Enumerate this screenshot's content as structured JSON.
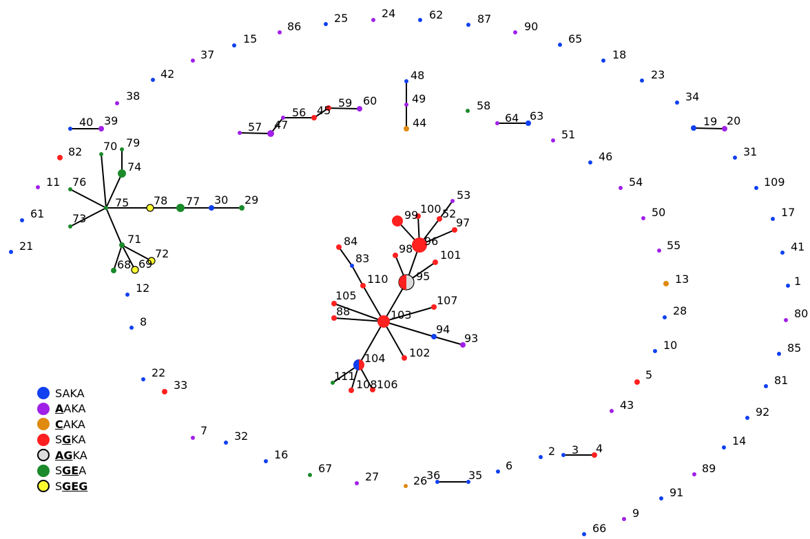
{
  "colors": {
    "blue": "#1040f0",
    "purple": "#a020e8",
    "orange": "#e08a10",
    "red": "#ff2020",
    "gray": "#dcdcdc",
    "green": "#1a8a2a",
    "yellow": "#ffff30",
    "edge": "#000000"
  },
  "legend": [
    {
      "color": "blue",
      "parts": [
        {
          "t": "SAKA",
          "u": false
        }
      ]
    },
    {
      "color": "purple",
      "parts": [
        {
          "t": "A",
          "u": true
        },
        {
          "t": "AKA",
          "u": false
        }
      ]
    },
    {
      "color": "orange",
      "parts": [
        {
          "t": "C",
          "u": true
        },
        {
          "t": "AKA",
          "u": false
        }
      ]
    },
    {
      "color": "red",
      "parts": [
        {
          "t": "S",
          "u": false
        },
        {
          "t": "G",
          "u": true
        },
        {
          "t": "KA",
          "u": false
        }
      ]
    },
    {
      "color": "gray",
      "parts": [
        {
          "t": "AG",
          "u": true
        },
        {
          "t": "KA",
          "u": false
        }
      ]
    },
    {
      "color": "green",
      "parts": [
        {
          "t": "S",
          "u": false
        },
        {
          "t": "GE",
          "u": true
        },
        {
          "t": "A",
          "u": false
        }
      ]
    },
    {
      "color": "yellow",
      "parts": [
        {
          "t": "S",
          "u": false
        },
        {
          "t": "GEG",
          "u": true
        }
      ]
    }
  ],
  "nodes": [
    {
      "id": "1",
      "color": "blue"
    },
    {
      "id": "2",
      "color": "blue"
    },
    {
      "id": "3",
      "color": "blue"
    },
    {
      "id": "4",
      "color": "red"
    },
    {
      "id": "5",
      "color": "red"
    },
    {
      "id": "6",
      "color": "blue"
    },
    {
      "id": "7",
      "color": "purple"
    },
    {
      "id": "8",
      "color": "blue"
    },
    {
      "id": "9",
      "color": "purple"
    },
    {
      "id": "10",
      "color": "blue"
    },
    {
      "id": "11",
      "color": "purple"
    },
    {
      "id": "12",
      "color": "blue"
    },
    {
      "id": "13",
      "color": "orange"
    },
    {
      "id": "14",
      "color": "blue"
    },
    {
      "id": "15",
      "color": "blue"
    },
    {
      "id": "16",
      "color": "blue"
    },
    {
      "id": "17",
      "color": "blue"
    },
    {
      "id": "18",
      "color": "blue"
    },
    {
      "id": "19",
      "color": "blue"
    },
    {
      "id": "20",
      "color": "purple"
    },
    {
      "id": "21",
      "color": "blue"
    },
    {
      "id": "22",
      "color": "blue"
    },
    {
      "id": "23",
      "color": "blue"
    },
    {
      "id": "24",
      "color": "purple"
    },
    {
      "id": "25",
      "color": "blue"
    },
    {
      "id": "26",
      "color": "orange"
    },
    {
      "id": "27",
      "color": "purple"
    },
    {
      "id": "28",
      "color": "blue"
    },
    {
      "id": "29",
      "color": "green"
    },
    {
      "id": "30",
      "color": "blue"
    },
    {
      "id": "31",
      "color": "blue"
    },
    {
      "id": "32",
      "color": "blue"
    },
    {
      "id": "33",
      "color": "red"
    },
    {
      "id": "34",
      "color": "blue"
    },
    {
      "id": "35",
      "color": "blue"
    },
    {
      "id": "36",
      "color": "blue"
    },
    {
      "id": "37",
      "color": "purple"
    },
    {
      "id": "38",
      "color": "purple"
    },
    {
      "id": "39",
      "color": "purple"
    },
    {
      "id": "40",
      "color": "blue"
    },
    {
      "id": "41",
      "color": "blue"
    },
    {
      "id": "42",
      "color": "blue"
    },
    {
      "id": "43",
      "color": "purple"
    },
    {
      "id": "44",
      "color": "orange"
    },
    {
      "id": "45",
      "color": "red"
    },
    {
      "id": "46",
      "color": "blue"
    },
    {
      "id": "47",
      "color": "purple"
    },
    {
      "id": "48",
      "color": "blue"
    },
    {
      "id": "49",
      "color": "purple"
    },
    {
      "id": "50",
      "color": "purple"
    },
    {
      "id": "51",
      "color": "purple"
    },
    {
      "id": "52",
      "color": "red"
    },
    {
      "id": "53",
      "color": "purple"
    },
    {
      "id": "54",
      "color": "purple"
    },
    {
      "id": "55",
      "color": "purple"
    },
    {
      "id": "56",
      "color": "purple"
    },
    {
      "id": "57",
      "color": "purple"
    },
    {
      "id": "58",
      "color": "green"
    },
    {
      "id": "59",
      "color": "red"
    },
    {
      "id": "60",
      "color": "purple"
    },
    {
      "id": "61",
      "color": "blue"
    },
    {
      "id": "62",
      "color": "blue"
    },
    {
      "id": "63",
      "color": "blue"
    },
    {
      "id": "64",
      "color": "purple"
    },
    {
      "id": "65",
      "color": "blue"
    },
    {
      "id": "66",
      "color": "blue"
    },
    {
      "id": "67",
      "color": "green"
    },
    {
      "id": "68",
      "color": "green"
    },
    {
      "id": "69",
      "color": "yellow"
    },
    {
      "id": "70",
      "color": "green"
    },
    {
      "id": "71",
      "color": "green"
    },
    {
      "id": "72",
      "color": "yellow"
    },
    {
      "id": "73",
      "color": "green"
    },
    {
      "id": "74",
      "color": "green"
    },
    {
      "id": "75",
      "color": "green"
    },
    {
      "id": "76",
      "color": "green"
    },
    {
      "id": "77",
      "color": "green"
    },
    {
      "id": "78",
      "color": "yellow"
    },
    {
      "id": "79",
      "color": "green"
    },
    {
      "id": "80",
      "color": "purple"
    },
    {
      "id": "81",
      "color": "blue"
    },
    {
      "id": "82",
      "color": "red"
    },
    {
      "id": "83",
      "color": "blue"
    },
    {
      "id": "84",
      "color": "red"
    },
    {
      "id": "85",
      "color": "blue"
    },
    {
      "id": "86",
      "color": "purple"
    },
    {
      "id": "87",
      "color": "blue"
    },
    {
      "id": "88",
      "color": "red"
    },
    {
      "id": "89",
      "color": "purple"
    },
    {
      "id": "90",
      "color": "purple"
    },
    {
      "id": "91",
      "color": "blue"
    },
    {
      "id": "92",
      "color": "blue"
    },
    {
      "id": "93",
      "color": "purple"
    },
    {
      "id": "94",
      "color": "blue"
    },
    {
      "id": "95",
      "color": "gray",
      "split": "red"
    },
    {
      "id": "96",
      "color": "red"
    },
    {
      "id": "97",
      "color": "red"
    },
    {
      "id": "98",
      "color": "red"
    },
    {
      "id": "99",
      "color": "red"
    },
    {
      "id": "100",
      "color": "red"
    },
    {
      "id": "101",
      "color": "red"
    },
    {
      "id": "102",
      "color": "red"
    },
    {
      "id": "103",
      "color": "red"
    },
    {
      "id": "104",
      "color": "red",
      "split": "blue"
    },
    {
      "id": "105",
      "color": "red"
    },
    {
      "id": "106",
      "color": "red"
    },
    {
      "id": "107",
      "color": "red"
    },
    {
      "id": "108",
      "color": "red"
    },
    {
      "id": "109",
      "color": "blue"
    },
    {
      "id": "110",
      "color": "red"
    },
    {
      "id": "111",
      "color": "green"
    }
  ],
  "edges": [
    [
      "40",
      "39"
    ],
    [
      "57",
      "47"
    ],
    [
      "47",
      "56"
    ],
    [
      "56",
      "45"
    ],
    [
      "45",
      "59"
    ],
    [
      "59",
      "60"
    ],
    [
      "48",
      "49"
    ],
    [
      "49",
      "44"
    ],
    [
      "64",
      "63"
    ],
    [
      "19",
      "20"
    ],
    [
      "3",
      "4"
    ],
    [
      "36",
      "35"
    ],
    [
      "75",
      "70"
    ],
    [
      "75",
      "74"
    ],
    [
      "74",
      "79"
    ],
    [
      "75",
      "76"
    ],
    [
      "75",
      "73"
    ],
    [
      "75",
      "78"
    ],
    [
      "78",
      "77"
    ],
    [
      "77",
      "30"
    ],
    [
      "30",
      "29"
    ],
    [
      "75",
      "71"
    ],
    [
      "71",
      "68"
    ],
    [
      "71",
      "69"
    ],
    [
      "71",
      "72"
    ],
    [
      "103",
      "110"
    ],
    [
      "110",
      "83"
    ],
    [
      "83",
      "84"
    ],
    [
      "103",
      "105"
    ],
    [
      "103",
      "88"
    ],
    [
      "103",
      "104"
    ],
    [
      "104",
      "111"
    ],
    [
      "104",
      "108"
    ],
    [
      "104",
      "106"
    ],
    [
      "103",
      "102"
    ],
    [
      "103",
      "94"
    ],
    [
      "94",
      "93"
    ],
    [
      "103",
      "107"
    ],
    [
      "103",
      "95"
    ],
    [
      "95",
      "98"
    ],
    [
      "95",
      "101"
    ],
    [
      "95",
      "96"
    ],
    [
      "96",
      "99"
    ],
    [
      "96",
      "100"
    ],
    [
      "96",
      "52"
    ],
    [
      "96",
      "97"
    ],
    [
      "52",
      "53"
    ]
  ]
}
